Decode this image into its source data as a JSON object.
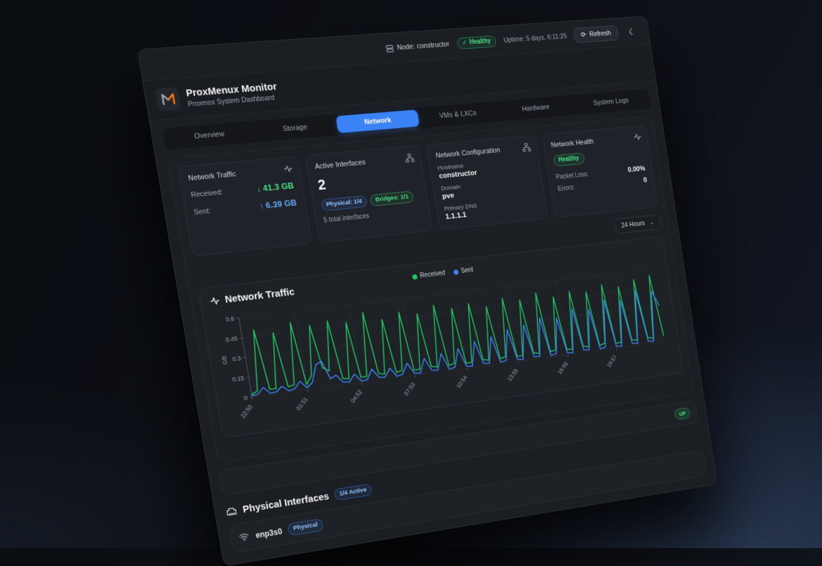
{
  "theme": {
    "accent_blue": "#3b82f6",
    "accent_green": "#22c55e",
    "green_text": "#4ade80",
    "blue_text": "#60a5fa",
    "bg_card": "#1f2228",
    "bg_dashboard": "#1b1e23"
  },
  "icons": {
    "node-icon": "server",
    "health-check-icon": "✓",
    "refresh-icon": "⟳",
    "theme-toggle-icon": "☾",
    "activity-icon": "pulse-line",
    "network-icon": "connected-nodes",
    "chevron-down-icon": "⌄",
    "ethernet-icon": "ethernet-port",
    "wifi-icon": "wifi-waves",
    "logo-icon": "M-mark"
  },
  "topbar": {
    "node_label": "Node: constructor",
    "health_badge": "Healthy",
    "uptime": "Uptime: 5 days, 6:11:25",
    "refresh_label": "Refresh"
  },
  "header": {
    "title": "ProxMenux Monitor",
    "subtitle": "Proxmox System Dashboard"
  },
  "tabs": {
    "items": [
      {
        "label": "Overview"
      },
      {
        "label": "Storage"
      },
      {
        "label": "Network"
      },
      {
        "label": "VMs & LXCs"
      },
      {
        "label": "Hardware"
      },
      {
        "label": "System Logs"
      }
    ],
    "active": "Network"
  },
  "cards": {
    "traffic": {
      "title": "Network Traffic",
      "received_label": "Received:",
      "received_value": "↓ 41.3 GB",
      "sent_label": "Sent:",
      "sent_value": "↑ 6.39 GB"
    },
    "interfaces": {
      "title": "Active Interfaces",
      "count": "2",
      "physical_badge": "Physical: 1/4",
      "bridges_badge": "Bridges: 1/1",
      "total": "5 total interfaces"
    },
    "config": {
      "title": "Network Configuration",
      "hostname_label": "Hostname",
      "hostname": "constructor",
      "domain_label": "Domain",
      "domain": "pve",
      "dns_label": "Primary DNS",
      "dns": "1.1.1.1"
    },
    "health": {
      "title": "Network Health",
      "status_badge": "Healthy",
      "packet_loss_label": "Packet Loss:",
      "packet_loss": "0.00%",
      "errors_label": "Errors:",
      "errors": "0"
    }
  },
  "time_range": {
    "selected": "24 Hours"
  },
  "chart_section": {
    "title": "Network Traffic"
  },
  "chart_data": {
    "type": "line",
    "title": "Network Traffic",
    "ylabel": "GB",
    "ylim": [
      0,
      0.6
    ],
    "yticks": [
      0,
      0.15,
      0.3,
      0.45,
      0.6
    ],
    "grid": "dashed",
    "legend_position": "top-center",
    "x_ticks": [
      {
        "index": 0,
        "label": "22:50"
      },
      {
        "index": 9,
        "label": "01:51"
      },
      {
        "index": 18,
        "label": "04:52"
      },
      {
        "index": 27,
        "label": "07:53"
      },
      {
        "index": 36,
        "label": "10:54"
      },
      {
        "index": 45,
        "label": "13:55"
      },
      {
        "index": 54,
        "label": "16:56"
      },
      {
        "index": 63,
        "label": "19:57"
      }
    ],
    "series": [
      {
        "name": "Received",
        "color": "#22c55e",
        "values": [
          0.02,
          0.04,
          0.5,
          0.04,
          0.04,
          0.46,
          0.04,
          0.05,
          0.52,
          0.04,
          0.1,
          0.48,
          0.15,
          0.12,
          0.5,
          0.05,
          0.04,
          0.47,
          0.04,
          0.04,
          0.53,
          0.05,
          0.04,
          0.46,
          0.04,
          0.05,
          0.5,
          0.04,
          0.04,
          0.47,
          0.05,
          0.04,
          0.52,
          0.04,
          0.05,
          0.48,
          0.04,
          0.04,
          0.5,
          0.05,
          0.04,
          0.46,
          0.04,
          0.05,
          0.51,
          0.04,
          0.04,
          0.48,
          0.05,
          0.04,
          0.52,
          0.04,
          0.05,
          0.47,
          0.04,
          0.04,
          0.5,
          0.05,
          0.04,
          0.48,
          0.04,
          0.05,
          0.52,
          0.04,
          0.04,
          0.49,
          0.05,
          0.04,
          0.53,
          0.05,
          0.04,
          0.55,
          0.05
        ]
      },
      {
        "name": "Sent",
        "color": "#3b82f6",
        "values": [
          0.01,
          0.015,
          0.06,
          0.01,
          0.015,
          0.05,
          0.01,
          0.02,
          0.07,
          0.015,
          0.05,
          0.18,
          0.2,
          0.06,
          0.08,
          0.02,
          0.015,
          0.07,
          0.01,
          0.015,
          0.09,
          0.02,
          0.015,
          0.08,
          0.01,
          0.02,
          0.1,
          0.015,
          0.01,
          0.12,
          0.02,
          0.015,
          0.14,
          0.01,
          0.02,
          0.16,
          0.015,
          0.01,
          0.2,
          0.02,
          0.015,
          0.22,
          0.01,
          0.02,
          0.26,
          0.015,
          0.01,
          0.28,
          0.02,
          0.015,
          0.32,
          0.01,
          0.02,
          0.3,
          0.015,
          0.01,
          0.36,
          0.02,
          0.015,
          0.34,
          0.01,
          0.02,
          0.4,
          0.015,
          0.01,
          0.38,
          0.02,
          0.015,
          0.44,
          0.02,
          0.015,
          0.42,
          0.3
        ]
      }
    ]
  },
  "status_row": {
    "badge": "UP"
  },
  "physical_section": {
    "title": "Physical Interfaces",
    "active_badge": "1/4 Active"
  },
  "interface_row": {
    "name": "enp3s0",
    "type_badge": "Physical"
  }
}
